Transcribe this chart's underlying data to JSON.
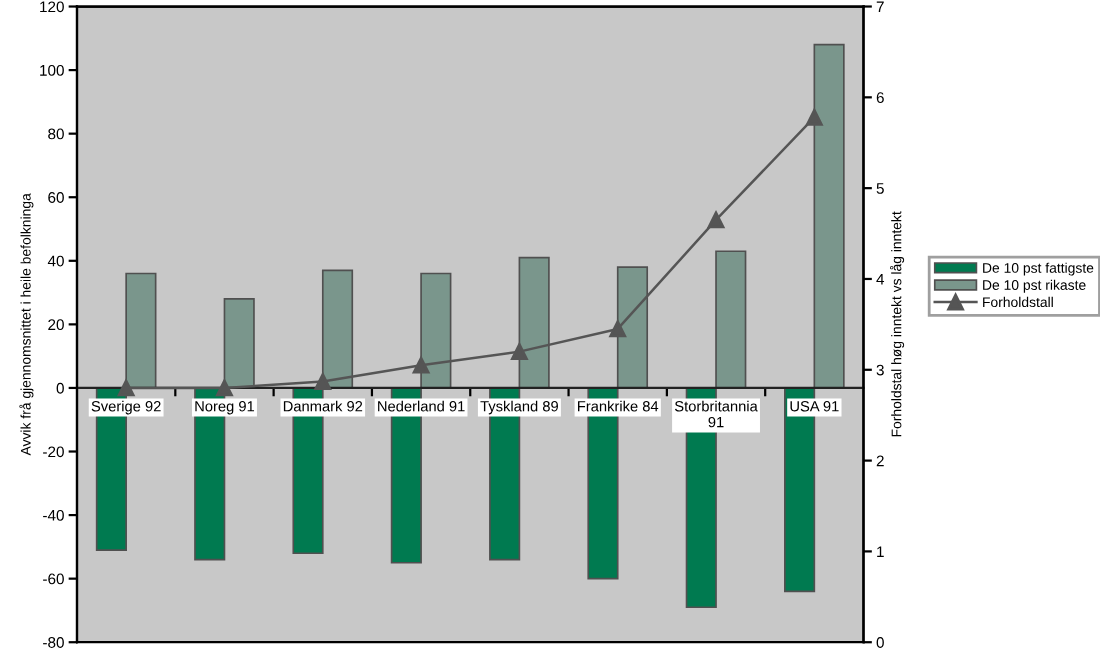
{
  "chart_data": {
    "type": "bar",
    "categories": [
      "Sverige 92",
      "Noreg 91",
      "Danmark 92",
      "Nederland 91",
      "Tyskland 89",
      "Frankrike 84",
      "Storbritannia 91",
      "USA 91"
    ],
    "ylabel": "Avvik frå gjennomsnittet i heile befolkninga",
    "y2label": "Forholdstal høg inntekt vs låg inntekt",
    "ylim": [
      -80,
      120
    ],
    "yticks": [
      -80,
      -60,
      -40,
      -20,
      0,
      20,
      40,
      60,
      80,
      100,
      120
    ],
    "y2lim": [
      0,
      7
    ],
    "y2ticks": [
      0,
      1,
      2,
      3,
      4,
      5,
      6,
      7
    ],
    "grid": false,
    "legend": "right",
    "series": [
      {
        "name": "De 10 pst fattigste",
        "color": "#007a50",
        "values": [
          -51,
          -54,
          -52,
          -55,
          -54,
          -60,
          -69,
          -64
        ]
      },
      {
        "name": "De 10 pst rikaste",
        "color": "#7a968c",
        "values": [
          36,
          28,
          37,
          36,
          41,
          38,
          43,
          108
        ]
      },
      {
        "name": "Forholdstall",
        "type": "line",
        "axis": "y2",
        "color": "#555555",
        "marker": "triangle",
        "line_style": "solid",
        "values": [
          2.8,
          2.8,
          2.87,
          3.05,
          3.2,
          3.45,
          4.65,
          5.78
        ]
      }
    ]
  }
}
